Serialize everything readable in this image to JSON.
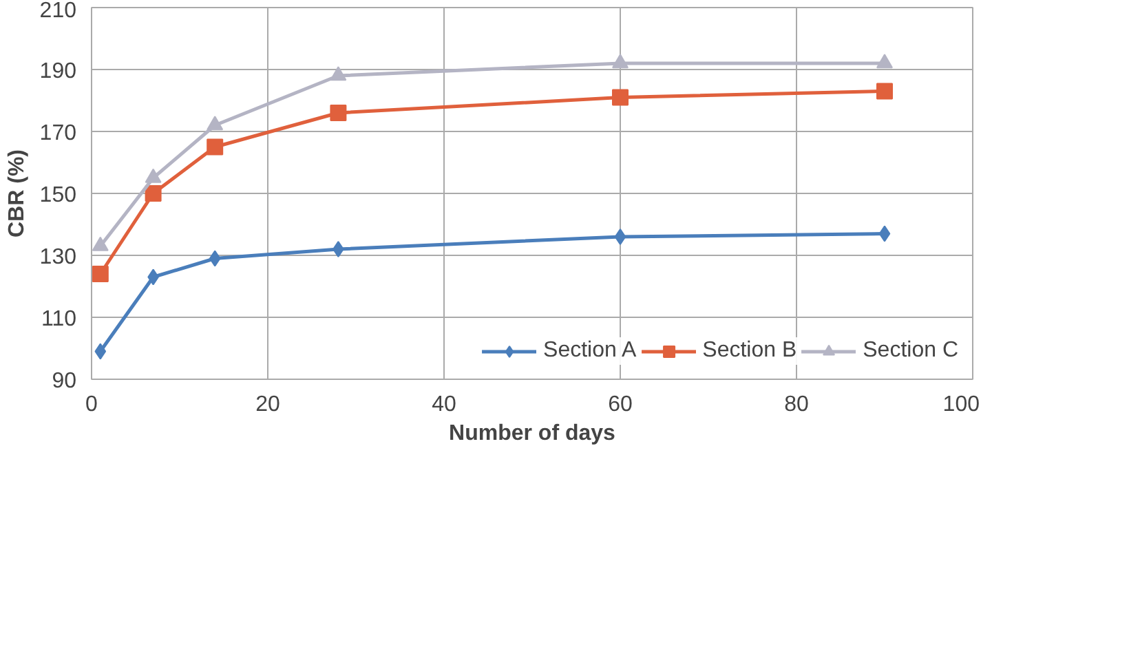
{
  "chart_data": {
    "type": "line",
    "xlabel": "Number of days",
    "ylabel": "CBR (%)",
    "x": [
      1,
      7,
      14,
      28,
      60,
      90
    ],
    "series": [
      {
        "name": "Section A",
        "color": "#4a7ebb",
        "marker": "diamond",
        "values": [
          99,
          123,
          129,
          132,
          136,
          137
        ]
      },
      {
        "name": "Section B",
        "color": "#e0603c",
        "marker": "square",
        "values": [
          124,
          150,
          165,
          176,
          181,
          183
        ]
      },
      {
        "name": "Section C",
        "color": "#b4b4c4",
        "marker": "triangle",
        "values": [
          133,
          155,
          172,
          188,
          192,
          192
        ]
      }
    ],
    "xlim": [
      0,
      100
    ],
    "xticks": [
      0,
      20,
      40,
      60,
      80,
      100
    ],
    "ylim": [
      90,
      210
    ],
    "yticks": [
      90,
      110,
      130,
      150,
      170,
      190,
      210
    ],
    "grid": true,
    "legend": "bottom right",
    "line_style": "solid"
  }
}
